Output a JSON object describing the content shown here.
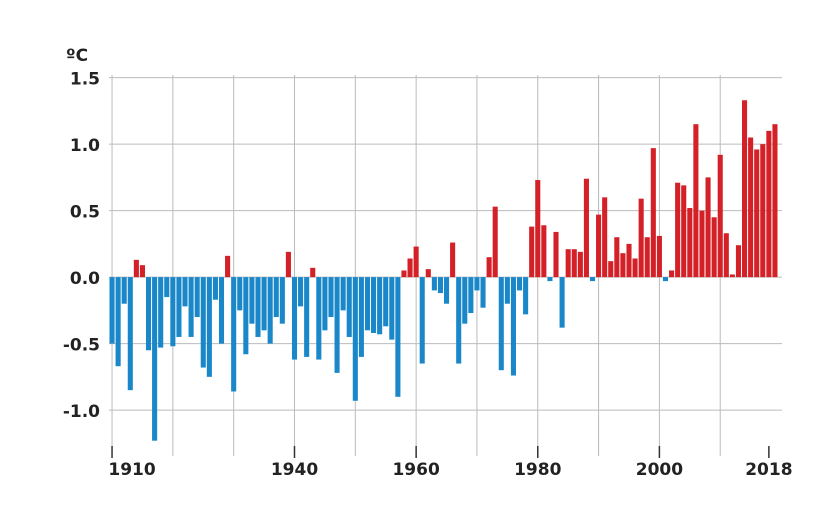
{
  "chart_data": {
    "type": "bar",
    "ylabel": "ºC",
    "x": [
      1910,
      1911,
      1912,
      1913,
      1914,
      1915,
      1916,
      1917,
      1918,
      1919,
      1920,
      1921,
      1922,
      1923,
      1924,
      1925,
      1926,
      1927,
      1928,
      1929,
      1930,
      1931,
      1932,
      1933,
      1934,
      1935,
      1936,
      1937,
      1938,
      1939,
      1940,
      1941,
      1942,
      1943,
      1944,
      1945,
      1946,
      1947,
      1948,
      1949,
      1950,
      1951,
      1952,
      1953,
      1954,
      1955,
      1956,
      1957,
      1958,
      1959,
      1960,
      1961,
      1962,
      1963,
      1964,
      1965,
      1966,
      1967,
      1968,
      1969,
      1970,
      1971,
      1972,
      1973,
      1974,
      1975,
      1976,
      1977,
      1978,
      1979,
      1980,
      1981,
      1982,
      1983,
      1984,
      1985,
      1986,
      1987,
      1988,
      1989,
      1990,
      1991,
      1992,
      1993,
      1994,
      1995,
      1996,
      1997,
      1998,
      1999,
      2000,
      2001,
      2002,
      2003,
      2004,
      2005,
      2006,
      2007,
      2008,
      2009,
      2010,
      2011,
      2012,
      2013,
      2014,
      2015,
      2016,
      2017,
      2018,
      2019
    ],
    "values": [
      -0.5,
      -0.67,
      -0.2,
      -0.85,
      0.13,
      0.09,
      -0.55,
      -1.23,
      -0.53,
      -0.15,
      -0.52,
      -0.45,
      -0.22,
      -0.45,
      -0.3,
      -0.68,
      -0.75,
      -0.17,
      -0.5,
      0.16,
      -0.86,
      -0.25,
      -0.58,
      -0.35,
      -0.45,
      -0.4,
      -0.5,
      -0.3,
      -0.35,
      0.19,
      -0.62,
      -0.22,
      -0.6,
      0.07,
      -0.62,
      -0.4,
      -0.3,
      -0.72,
      -0.25,
      -0.45,
      -0.93,
      -0.6,
      -0.4,
      -0.42,
      -0.43,
      -0.37,
      -0.47,
      -0.9,
      0.05,
      0.14,
      0.23,
      -0.65,
      0.06,
      -0.1,
      -0.12,
      -0.2,
      0.26,
      -0.65,
      -0.35,
      -0.27,
      -0.1,
      -0.23,
      0.15,
      0.53,
      -0.7,
      -0.2,
      -0.74,
      -0.1,
      -0.28,
      0.38,
      0.73,
      0.39,
      -0.03,
      0.34,
      -0.38,
      0.21,
      0.21,
      0.19,
      0.74,
      -0.03,
      0.47,
      0.6,
      0.12,
      0.3,
      0.18,
      0.25,
      0.14,
      0.59,
      0.3,
      0.97,
      0.31,
      -0.03,
      0.05,
      0.71,
      0.69,
      0.52,
      1.15,
      0.5,
      0.75,
      0.45,
      0.92,
      0.33,
      0.02,
      0.24,
      1.33,
      1.05,
      0.96,
      1.0,
      1.1,
      1.15
    ],
    "positive_color": "#d42027",
    "negative_color": "#1a87c9",
    "xlim": [
      1909.5,
      2019.5
    ],
    "xticks": [
      1910,
      1940,
      1960,
      1980,
      2000,
      2018
    ],
    "xgrid": [
      1910,
      1920,
      1930,
      1940,
      1950,
      1960,
      1970,
      1980,
      1990,
      2000,
      2010
    ],
    "ylim": [
      -1.27,
      1.52
    ],
    "yticks": [
      1.5,
      {
        "value": 1.0,
        "label": "1.0"
      },
      0.5,
      {
        "value": 0.0,
        "label": "0.0"
      },
      -0.5,
      {
        "value": -1.0,
        "label": "-1.0"
      }
    ],
    "grid": true
  }
}
